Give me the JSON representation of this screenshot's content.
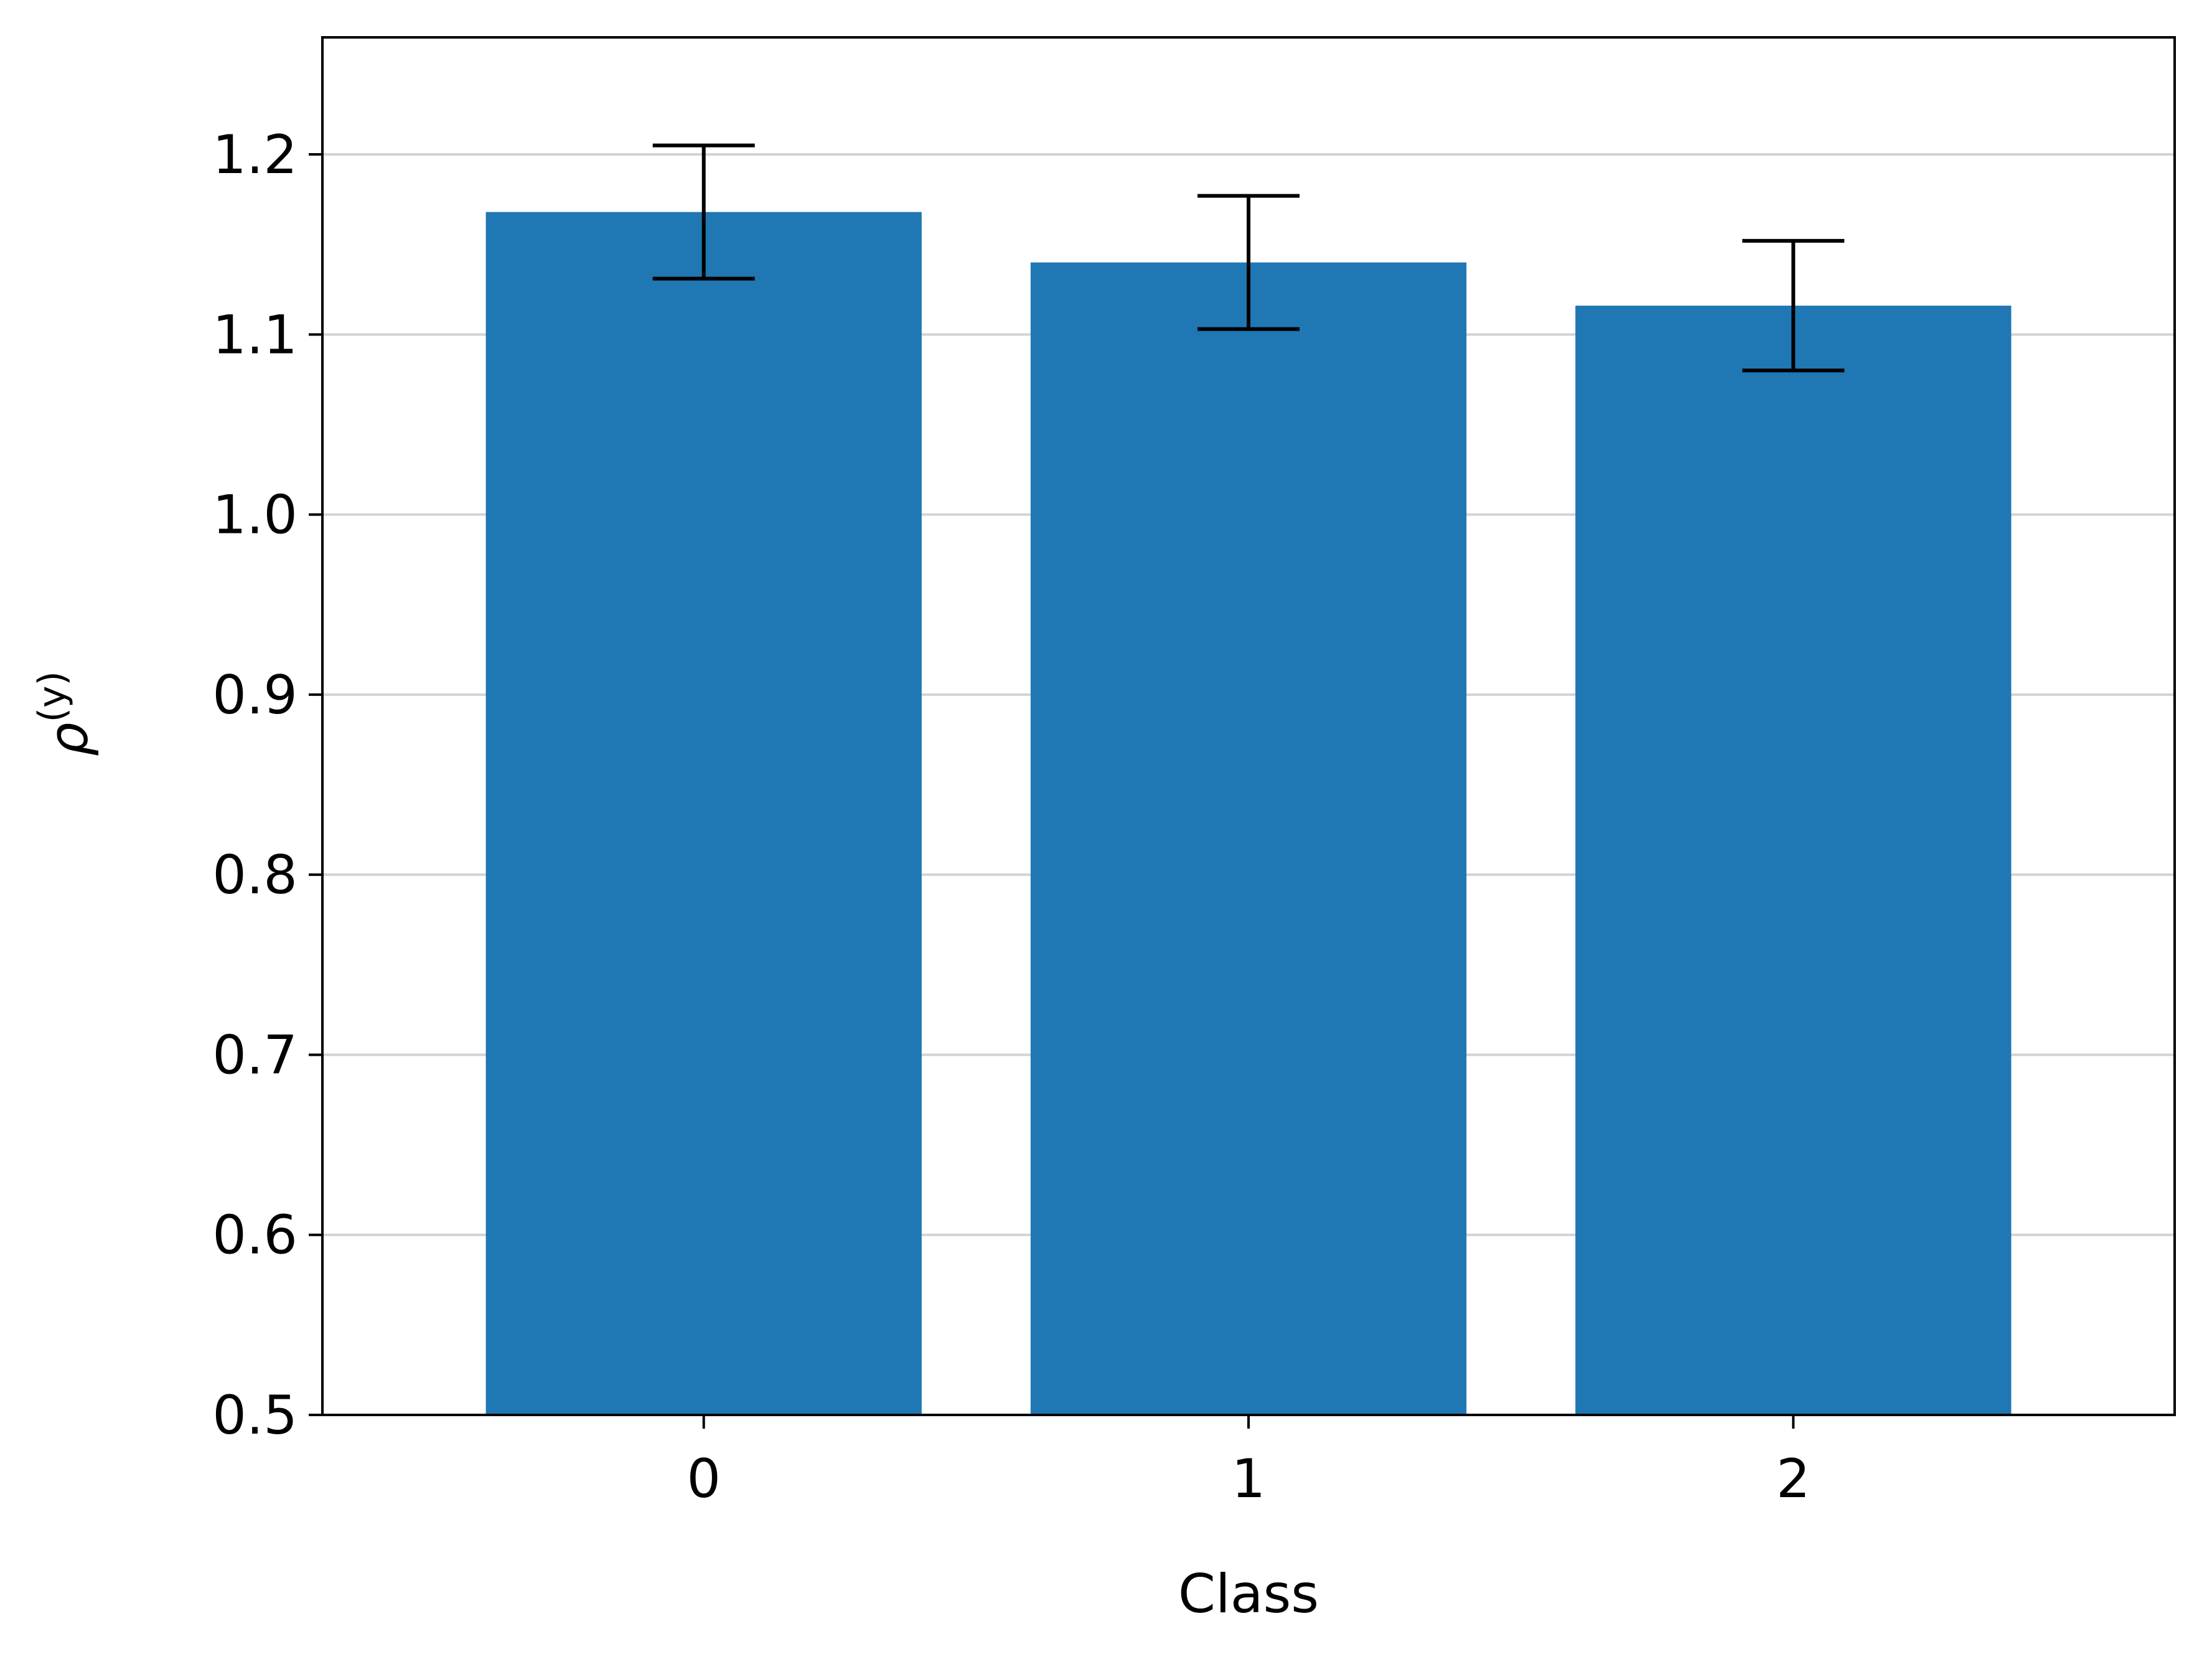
{
  "chart_data": {
    "type": "bar",
    "categories": [
      "0",
      "1",
      "2"
    ],
    "values": [
      1.168,
      1.14,
      1.116
    ],
    "errors": [
      0.037,
      0.037,
      0.036
    ],
    "title": "",
    "xlabel": "Class",
    "ylabel": "ρ(y)",
    "ylabel_parts": {
      "base": "ρ",
      "superscript": "(y)"
    },
    "ylim": [
      0.5,
      1.265
    ],
    "yticks": [
      "0.5",
      "0.6",
      "0.7",
      "0.8",
      "0.9",
      "1.0",
      "1.1",
      "1.2"
    ],
    "ytick_values": [
      0.5,
      0.6,
      0.7,
      0.8,
      0.9,
      1.0,
      1.1,
      1.2
    ],
    "grid": "horizontal",
    "bar_color": "#1f77b4",
    "error_color": "#000000",
    "grid_color": "#d3d3d3"
  }
}
